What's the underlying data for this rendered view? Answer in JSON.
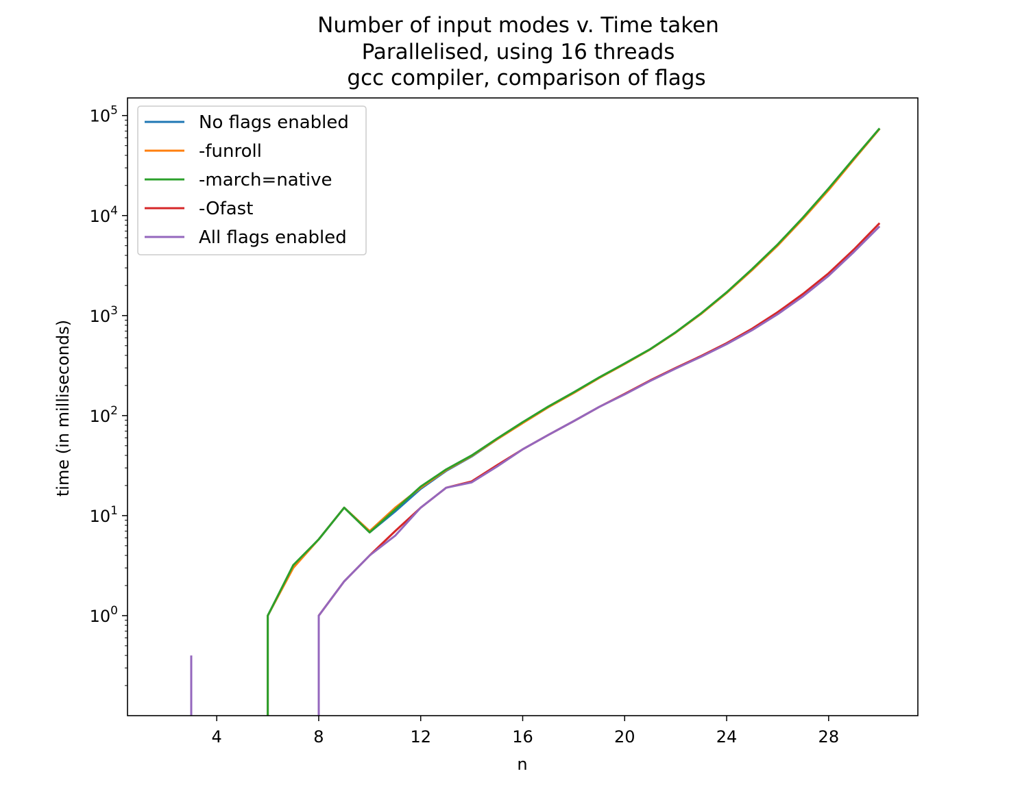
{
  "chart_data": {
    "type": "line",
    "title": [
      "Number of input modes v. Time taken",
      "Parallelised, using 16 threads",
      "gcc compiler, comparison of flags"
    ],
    "xlabel": "n",
    "ylabel": "time (in milliseconds)",
    "xlim": [
      0.5,
      31.5
    ],
    "ylim": [
      0.1,
      150000
    ],
    "yscale": "log",
    "xticks": [
      4,
      8,
      12,
      16,
      20,
      24,
      28
    ],
    "xtick_labels": [
      "4",
      "8",
      "12",
      "16",
      "20",
      "24",
      "28"
    ],
    "yticks": [
      1,
      10,
      100,
      1000,
      10000,
      100000
    ],
    "ytick_labels": [
      {
        "base": "10",
        "exp": "0"
      },
      {
        "base": "10",
        "exp": "1"
      },
      {
        "base": "10",
        "exp": "2"
      },
      {
        "base": "10",
        "exp": "3"
      },
      {
        "base": "10",
        "exp": "4"
      },
      {
        "base": "10",
        "exp": "5"
      }
    ],
    "grid": false,
    "legend_position": "upper-left",
    "series": [
      {
        "name": "No flags enabled",
        "color": "#1f77b4",
        "x": [
          6,
          7,
          8,
          9,
          10,
          11,
          12,
          13,
          14,
          15,
          16,
          17,
          18,
          19,
          20,
          21,
          22,
          23,
          24,
          25,
          26,
          27,
          28,
          29,
          30
        ],
        "y": [
          1,
          3.1,
          5.8,
          12,
          6.8,
          11,
          18.5,
          28,
          39,
          58,
          85,
          122,
          170,
          240,
          330,
          460,
          680,
          1050,
          1700,
          2900,
          5100,
          9500,
          18500,
          37000,
          74000
        ],
        "zero_drop_x": 6
      },
      {
        "name": "-funroll",
        "color": "#ff7f0e",
        "x": [
          6,
          7,
          8,
          9,
          10,
          11,
          12,
          13,
          14,
          15,
          16,
          17,
          18,
          19,
          20,
          21,
          22,
          23,
          24,
          25,
          26,
          27,
          28,
          29,
          30
        ],
        "y": [
          1,
          3.0,
          5.8,
          12,
          7.0,
          12,
          19,
          28.5,
          39.5,
          58,
          84,
          121,
          168,
          238,
          328,
          458,
          675,
          1040,
          1680,
          2850,
          5000,
          9300,
          18000,
          36500,
          73500
        ],
        "zero_drop_x": 6
      },
      {
        "name": "-march=native",
        "color": "#2ca02c",
        "x": [
          6,
          7,
          8,
          9,
          10,
          11,
          12,
          13,
          14,
          15,
          16,
          17,
          18,
          19,
          20,
          21,
          22,
          23,
          24,
          25,
          26,
          27,
          28,
          29,
          30
        ],
        "y": [
          1,
          3.2,
          5.8,
          12,
          6.8,
          11.5,
          19.5,
          29,
          40,
          59,
          86,
          123,
          171,
          241,
          332,
          462,
          682,
          1055,
          1710,
          2920,
          5150,
          9600,
          18700,
          37500,
          74500
        ],
        "zero_drop_x": 6
      },
      {
        "name": "-Ofast",
        "color": "#d62728",
        "x": [
          8,
          9,
          10,
          11,
          12,
          13,
          14,
          15,
          16,
          17,
          18,
          19,
          20,
          21,
          22,
          23,
          24,
          25,
          26,
          27,
          28,
          29,
          30
        ],
        "y": [
          1,
          2.2,
          4.0,
          7.0,
          12,
          19,
          22,
          32,
          46,
          64,
          88,
          122,
          165,
          225,
          300,
          395,
          530,
          740,
          1080,
          1650,
          2650,
          4600,
          8400
        ],
        "zero_drop_x": 8
      },
      {
        "name": "All flags enabled",
        "color": "#9467bd",
        "x": [
          8,
          9,
          10,
          11,
          12,
          13,
          14,
          15,
          16,
          17,
          18,
          19,
          20,
          21,
          22,
          23,
          24,
          25,
          26,
          27,
          28,
          29,
          30
        ],
        "y": [
          1,
          2.2,
          4.0,
          6.3,
          12,
          19,
          21.5,
          31,
          46,
          64,
          88,
          122,
          163,
          222,
          295,
          388,
          518,
          715,
          1030,
          1560,
          2500,
          4350,
          7800
        ],
        "zero_drop_x": 8,
        "spike": {
          "x": 3,
          "y": 0.4
        }
      }
    ]
  }
}
